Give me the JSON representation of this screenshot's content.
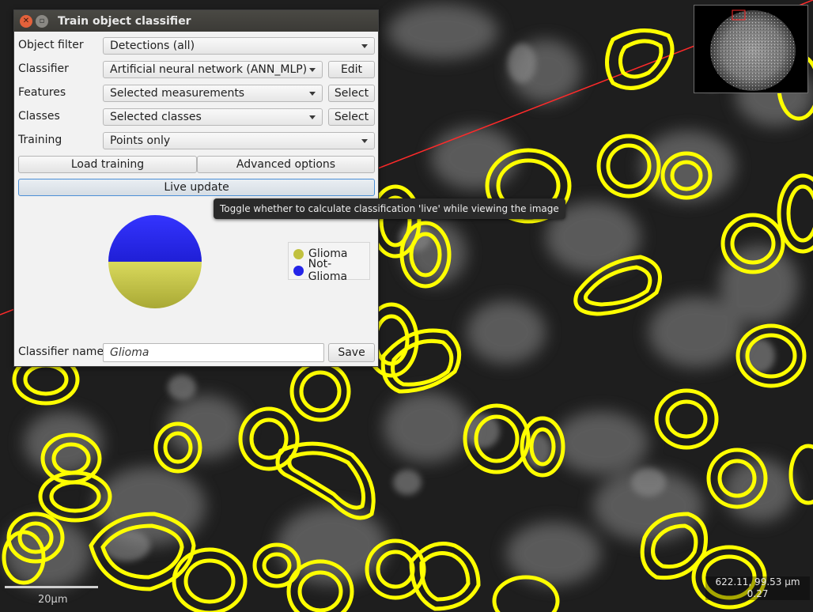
{
  "dialog": {
    "title": "Train object classifier",
    "rows": {
      "object_filter": {
        "label": "Object filter",
        "value": "Detections (all)"
      },
      "classifier": {
        "label": "Classifier",
        "value": "Artificial neural network (ANN_MLP)",
        "button": "Edit"
      },
      "features": {
        "label": "Features",
        "value": "Selected measurements",
        "button": "Select"
      },
      "classes": {
        "label": "Classes",
        "value": "Selected classes",
        "button": "Select"
      },
      "training": {
        "label": "Training",
        "value": "Points only"
      }
    },
    "load_training": "Load training",
    "advanced_options": "Advanced options",
    "live_update": "Live update",
    "tooltip": "Toggle whether to calculate classification 'live' while viewing the image",
    "legend": [
      {
        "label": "Glioma",
        "color": "#c1c13f"
      },
      {
        "label": "Not-Glioma",
        "color": "#2424e8"
      }
    ],
    "pie": {
      "glioma_fraction": 0.5,
      "not_glioma_fraction": 0.5
    },
    "classifier_name_label": "Classifier name",
    "classifier_name_value": "Glioma",
    "save": "Save"
  },
  "viewer": {
    "scalebar_label": "20µm",
    "coords": "622.11, 99.53 µm",
    "coords_value": "0.27",
    "outline_color": "#ffff00",
    "annotation_line_color": "#ff2a2a"
  }
}
